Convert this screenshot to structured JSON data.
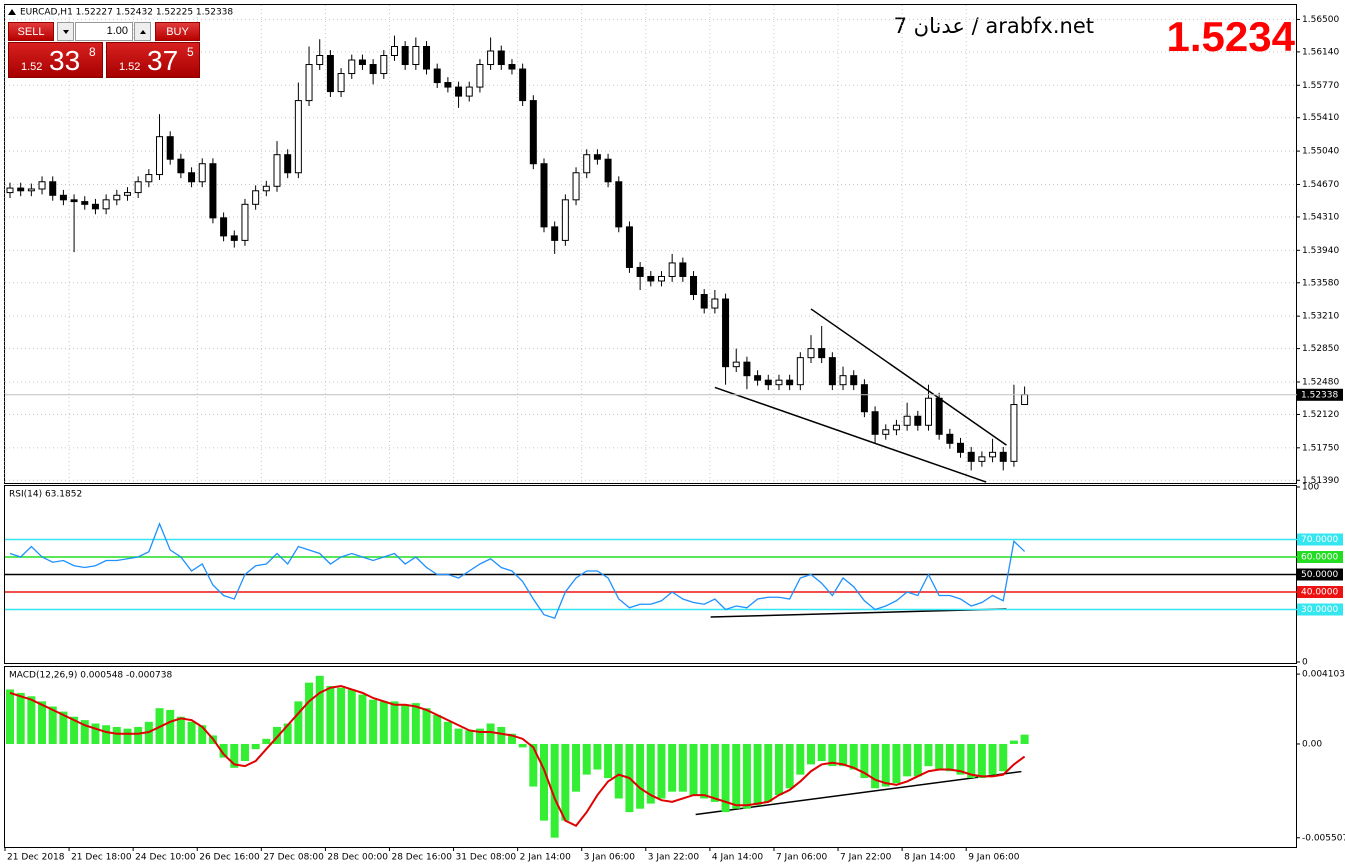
{
  "header": {
    "title": "EURCAD,H1 1.52227 1.52432 1.52225 1.52338"
  },
  "trade_panel": {
    "sell": "SELL",
    "buy": "BUY",
    "volume": "1.00",
    "sell_big": "1.52",
    "sell_pips": "33",
    "sell_frac": "8",
    "buy_big": "1.52",
    "buy_pips": "37",
    "buy_frac": "5"
  },
  "chart_data": [
    {
      "type": "candlestick",
      "annotations": [
        "عدنان 7 / arabfx.net",
        "1.5234"
      ],
      "categories": [
        "21 Dec 2018",
        null,
        null,
        null,
        null,
        null,
        "21 Dec 18:00",
        null,
        null,
        null,
        null,
        null,
        "24 Dec 10:00",
        null,
        null,
        null,
        null,
        null,
        "26 Dec 16:00",
        null,
        null,
        null,
        null,
        null,
        "27 Dec 08:00",
        null,
        null,
        null,
        null,
        null,
        "28 Dec 00:00",
        null,
        null,
        null,
        null,
        null,
        "28 Dec 16:00",
        null,
        null,
        null,
        null,
        null,
        "31 Dec 08:00",
        null,
        null,
        null,
        null,
        null,
        "2 Jan 14:00",
        null,
        null,
        null,
        null,
        null,
        "3 Jan 06:00",
        null,
        null,
        null,
        null,
        null,
        "3 Jan 22:00",
        null,
        null,
        null,
        null,
        null,
        "4 Jan 14:00",
        null,
        null,
        null,
        null,
        null,
        "7 Jan 06:00",
        null,
        null,
        null,
        null,
        null,
        "7 Jan 22:00",
        null,
        null,
        null,
        null,
        null,
        "8 Jan 14:00",
        null,
        null,
        null,
        null,
        null,
        "9 Jan 06:00",
        null,
        null,
        null,
        null,
        null
      ],
      "open": [
        1.5458,
        1.5463,
        1.546,
        1.5462,
        1.547,
        1.5455,
        1.545,
        1.5448,
        1.5445,
        1.544,
        1.545,
        1.5455,
        1.5458,
        1.547,
        1.5478,
        1.552,
        1.5495,
        1.548,
        1.547,
        1.549,
        1.543,
        1.541,
        1.5405,
        1.5445,
        1.546,
        1.5465,
        1.55,
        1.548,
        1.556,
        1.56,
        1.561,
        1.557,
        1.559,
        1.5605,
        1.56,
        1.559,
        1.561,
        1.562,
        1.56,
        1.562,
        1.5595,
        1.558,
        1.5575,
        1.5565,
        1.5575,
        1.56,
        1.5615,
        1.56,
        1.5595,
        1.556,
        1.549,
        1.542,
        1.5405,
        1.545,
        1.548,
        1.55,
        1.5495,
        1.547,
        1.542,
        1.5375,
        1.5365,
        1.536,
        1.5365,
        1.538,
        1.5365,
        1.5345,
        1.533,
        1.534,
        1.5265,
        1.527,
        1.5255,
        1.525,
        1.5245,
        1.525,
        1.5245,
        1.5275,
        1.5285,
        1.5275,
        1.5245,
        1.5255,
        1.5245,
        1.5215,
        1.519,
        1.5195,
        1.52,
        1.521,
        1.52,
        1.523,
        1.519,
        1.518,
        1.517,
        1.516,
        1.5165,
        1.517,
        1.516,
        1.5223
      ],
      "high": [
        1.5469,
        1.5469,
        1.5468,
        1.5476,
        1.5476,
        1.5461,
        1.5456,
        1.5454,
        1.5451,
        1.5456,
        1.5461,
        1.5464,
        1.5476,
        1.5484,
        1.5545,
        1.5526,
        1.5501,
        1.5486,
        1.5496,
        1.5496,
        1.5436,
        1.5416,
        1.5451,
        1.5466,
        1.5471,
        1.5515,
        1.5506,
        1.558,
        1.562,
        1.5628,
        1.5616,
        1.5596,
        1.5611,
        1.5611,
        1.5606,
        1.5616,
        1.5632,
        1.5626,
        1.563,
        1.5626,
        1.5601,
        1.5586,
        1.5581,
        1.5581,
        1.5606,
        1.563,
        1.5621,
        1.5606,
        1.5601,
        1.5566,
        1.5496,
        1.5426,
        1.5456,
        1.5486,
        1.5506,
        1.5506,
        1.5501,
        1.5476,
        1.5426,
        1.5381,
        1.5371,
        1.5371,
        1.539,
        1.5386,
        1.5371,
        1.5351,
        1.535,
        1.5346,
        1.5285,
        1.5276,
        1.5261,
        1.5256,
        1.5256,
        1.5256,
        1.5281,
        1.53,
        1.531,
        1.5281,
        1.5265,
        1.5261,
        1.5251,
        1.5221,
        1.5201,
        1.5206,
        1.5225,
        1.5216,
        1.5245,
        1.5236,
        1.5196,
        1.5186,
        1.5176,
        1.5171,
        1.5185,
        1.5176,
        1.5245,
        1.5243
      ],
      "low": [
        1.5452,
        1.5454,
        1.5454,
        1.5456,
        1.5449,
        1.5444,
        1.5392,
        1.5439,
        1.5434,
        1.5434,
        1.5444,
        1.5449,
        1.5452,
        1.5464,
        1.5472,
        1.5489,
        1.5474,
        1.5464,
        1.5464,
        1.5424,
        1.5404,
        1.5397,
        1.5399,
        1.5439,
        1.5454,
        1.5459,
        1.5474,
        1.5474,
        1.5554,
        1.5594,
        1.5564,
        1.5564,
        1.5584,
        1.5594,
        1.5578,
        1.5584,
        1.5604,
        1.5594,
        1.5594,
        1.5589,
        1.5574,
        1.5569,
        1.5552,
        1.5559,
        1.5569,
        1.5594,
        1.5594,
        1.5589,
        1.5554,
        1.5484,
        1.5414,
        1.539,
        1.5399,
        1.5444,
        1.5474,
        1.5489,
        1.5464,
        1.5414,
        1.5369,
        1.535,
        1.5354,
        1.5354,
        1.5359,
        1.5359,
        1.5339,
        1.5324,
        1.5324,
        1.5245,
        1.5259,
        1.524,
        1.5244,
        1.5239,
        1.5239,
        1.5239,
        1.5239,
        1.5269,
        1.5269,
        1.5239,
        1.5239,
        1.5239,
        1.5209,
        1.518,
        1.5184,
        1.5189,
        1.5194,
        1.5194,
        1.5194,
        1.5184,
        1.5174,
        1.5164,
        1.515,
        1.5154,
        1.5159,
        1.515,
        1.5154,
        1.5223
      ],
      "close": [
        1.5463,
        1.546,
        1.5462,
        1.547,
        1.5455,
        1.545,
        1.5448,
        1.5445,
        1.544,
        1.545,
        1.5455,
        1.5458,
        1.547,
        1.5478,
        1.552,
        1.5495,
        1.548,
        1.547,
        1.549,
        1.543,
        1.541,
        1.5405,
        1.5445,
        1.546,
        1.5465,
        1.55,
        1.548,
        1.556,
        1.56,
        1.561,
        1.557,
        1.559,
        1.5605,
        1.56,
        1.559,
        1.561,
        1.562,
        1.56,
        1.562,
        1.5595,
        1.558,
        1.5575,
        1.5565,
        1.5575,
        1.56,
        1.5615,
        1.56,
        1.5595,
        1.556,
        1.549,
        1.542,
        1.5405,
        1.545,
        1.548,
        1.55,
        1.5495,
        1.547,
        1.542,
        1.5375,
        1.5365,
        1.536,
        1.5365,
        1.538,
        1.5365,
        1.5345,
        1.533,
        1.534,
        1.5265,
        1.527,
        1.5255,
        1.525,
        1.5245,
        1.525,
        1.5245,
        1.5275,
        1.5285,
        1.5275,
        1.5245,
        1.5255,
        1.5245,
        1.5215,
        1.519,
        1.5195,
        1.52,
        1.521,
        1.52,
        1.523,
        1.519,
        1.518,
        1.517,
        1.516,
        1.5165,
        1.517,
        1.516,
        1.5223,
        1.5234
      ],
      "color": "#000000",
      "up_color": "#ffffff",
      "down_color": "#000000",
      "ylim": [
        1.5136,
        1.5666
      ],
      "yticks": [
        {
          "value": 1.565,
          "label": "1.56500"
        },
        {
          "value": 1.5614,
          "label": "1.56140"
        },
        {
          "value": 1.5577,
          "label": "1.55770"
        },
        {
          "value": 1.5541,
          "label": "1.55410"
        },
        {
          "value": 1.5504,
          "label": "1.55040"
        },
        {
          "value": 1.5467,
          "label": "1.54670"
        },
        {
          "value": 1.5431,
          "label": "1.54310"
        },
        {
          "value": 1.5394,
          "label": "1.53940"
        },
        {
          "value": 1.5358,
          "label": "1.53580"
        },
        {
          "value": 1.5321,
          "label": "1.53210"
        },
        {
          "value": 1.5285,
          "label": "1.52850"
        },
        {
          "value": 1.5248,
          "label": "1.52480"
        },
        {
          "value": 1.5212,
          "label": "1.52120"
        },
        {
          "value": 1.5175,
          "label": "1.51750"
        },
        {
          "value": 1.5139,
          "label": "1.51390"
        }
      ],
      "current_price": 1.52338,
      "grid": true,
      "trendlines": [
        {
          "x": [
            75,
            93.3
          ],
          "y": [
            1.5329,
            1.5178
          ]
        },
        {
          "x": [
            66,
            91.4
          ],
          "y": [
            1.5242,
            1.5137
          ]
        }
      ]
    },
    {
      "type": "line",
      "title": "RSI(14) 63.1852",
      "color": "#1e90ff",
      "values": [
        62,
        60,
        66,
        60,
        57,
        58,
        55,
        54,
        55,
        58,
        58,
        59,
        60,
        63,
        79,
        64,
        60,
        52,
        56,
        44,
        38,
        36,
        50,
        55,
        56,
        62,
        56,
        66,
        64,
        62,
        56,
        60,
        62,
        60,
        58,
        60,
        62,
        56,
        60,
        54,
        50,
        50,
        48,
        52,
        56,
        59,
        54,
        52,
        46,
        36,
        27,
        25,
        40,
        48,
        52,
        52,
        48,
        36,
        31,
        33,
        33,
        35,
        40,
        36,
        34,
        33,
        36,
        30,
        32,
        31,
        36,
        37,
        37,
        36,
        48,
        50,
        45,
        38,
        48,
        43,
        35,
        30,
        32,
        35,
        40,
        38,
        50,
        38,
        38,
        36,
        32,
        34,
        38,
        35,
        69,
        63.1852
      ],
      "ylim": [
        0,
        100
      ],
      "yticks": [
        100,
        0
      ],
      "levels": [
        {
          "value": 70,
          "label": "70.0000",
          "color": "#33e6f0"
        },
        {
          "value": 60,
          "label": "60.0000",
          "color": "#22dd22"
        },
        {
          "value": 50,
          "label": "50.0000",
          "color": "#000000"
        },
        {
          "value": 40,
          "label": "40.0000",
          "color": "#ee1111"
        },
        {
          "value": 30,
          "label": "30.0000",
          "color": "#33e6f0"
        }
      ],
      "trendlines": [
        {
          "x": [
            65.6,
            93.3
          ],
          "y": [
            25.7,
            30.3
          ]
        }
      ]
    },
    {
      "type": "bar",
      "title": "MACD(12,26,9) 0.000548 -0.000738",
      "color": "#33ee33",
      "signal_color": "#e00000",
      "values": [
        0.0032,
        0.003,
        0.0028,
        0.0025,
        0.0022,
        0.0019,
        0.0016,
        0.0014,
        0.0012,
        0.0011,
        0.001,
        0.0009,
        0.001,
        0.0013,
        0.0021,
        0.002,
        0.0016,
        0.0013,
        0.0011,
        0.0005,
        -0.0008,
        -0.0014,
        -0.001,
        -0.0003,
        0.0003,
        0.001,
        0.0012,
        0.0025,
        0.0036,
        0.004,
        0.0034,
        0.0033,
        0.0032,
        0.0029,
        0.0026,
        0.0025,
        0.0025,
        0.0023,
        0.0024,
        0.0021,
        0.0017,
        0.0013,
        0.0009,
        0.0008,
        0.0009,
        0.0012,
        0.001,
        0.0006,
        -0.0002,
        -0.0025,
        -0.0045,
        -0.0055,
        -0.0045,
        -0.0028,
        -0.0018,
        -0.0015,
        -0.002,
        -0.0032,
        -0.004,
        -0.0038,
        -0.0035,
        -0.0032,
        -0.0028,
        -0.0028,
        -0.003,
        -0.0032,
        -0.0034,
        -0.004,
        -0.0038,
        -0.0038,
        -0.0036,
        -0.0034,
        -0.003,
        -0.0026,
        -0.0018,
        -0.0012,
        -0.001,
        -0.0013,
        -0.0013,
        -0.0015,
        -0.002,
        -0.0026,
        -0.0025,
        -0.0023,
        -0.0019,
        -0.0019,
        -0.0013,
        -0.0015,
        -0.0016,
        -0.0018,
        -0.002,
        -0.002,
        -0.0018,
        -0.0016,
        0.0002,
        0.000548
      ],
      "signal": [
        0.003,
        0.0028,
        0.0026,
        0.0023,
        0.002,
        0.0017,
        0.0014,
        0.0011,
        0.0009,
        0.0007,
        0.0006,
        0.0006,
        0.0006,
        0.0007,
        0.001,
        0.0013,
        0.0015,
        0.0014,
        0.001,
        0.0003,
        -0.0006,
        -0.0012,
        -0.0013,
        -0.001,
        -0.0003,
        0.0004,
        0.0011,
        0.0018,
        0.0025,
        0.003,
        0.0033,
        0.0034,
        0.0032,
        0.003,
        0.0027,
        0.0025,
        0.0023,
        0.0023,
        0.0022,
        0.002,
        0.0017,
        0.0014,
        0.0011,
        0.0008,
        0.0007,
        0.0007,
        0.0006,
        0.0005,
        0.0003,
        -0.0002,
        -0.0015,
        -0.0032,
        -0.0045,
        -0.0048,
        -0.004,
        -0.003,
        -0.0022,
        -0.0018,
        -0.002,
        -0.0026,
        -0.003,
        -0.0033,
        -0.0034,
        -0.0032,
        -0.003,
        -0.003,
        -0.0032,
        -0.0034,
        -0.0036,
        -0.0036,
        -0.0035,
        -0.0034,
        -0.003,
        -0.0027,
        -0.0022,
        -0.0016,
        -0.0012,
        -0.0011,
        -0.0012,
        -0.0014,
        -0.0017,
        -0.0021,
        -0.0023,
        -0.0024,
        -0.0022,
        -0.0019,
        -0.0016,
        -0.0015,
        -0.0015,
        -0.0016,
        -0.0018,
        -0.0019,
        -0.0019,
        -0.0018,
        -0.0012,
        -0.000738
      ],
      "ylim": [
        -0.00599,
        0.00446
      ],
      "yticks": [
        0.004103,
        {
          "value": 0,
          "label": "0.00"
        },
        -0.005507
      ],
      "trendlines": [
        {
          "x": [
            64.2,
            94.7
          ],
          "y": [
            -0.00414,
            -0.00162
          ]
        }
      ]
    }
  ]
}
